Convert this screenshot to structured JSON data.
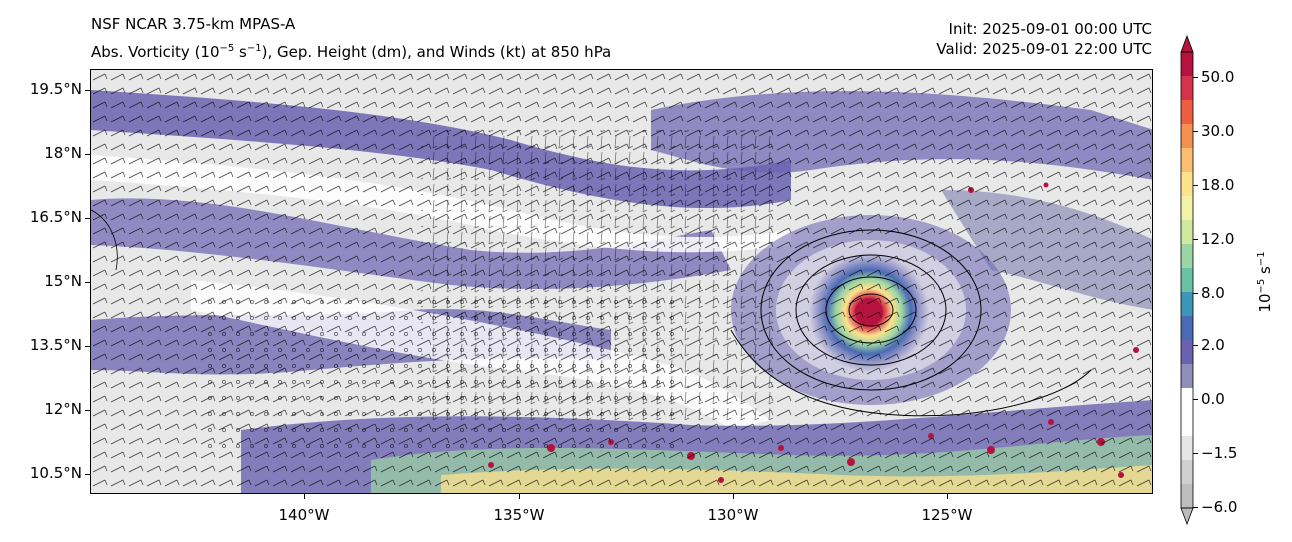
{
  "header": {
    "model_title": "NSF NCAR 3.75-km MPAS-A",
    "field_title_prefix": "Abs. Vorticity (10",
    "field_title_exp1": "−5",
    "field_title_mid": " s",
    "field_title_exp2": "−1",
    "field_title_suffix": "), Gep. Height (dm), and Winds (kt) at 850 hPa",
    "init": "Init: 2025-09-01 00:00 UTC",
    "valid": "Valid: 2025-09-01 22:00 UTC"
  },
  "axes": {
    "lat_labels": [
      "19.5°N",
      "18°N",
      "16.5°N",
      "15°N",
      "13.5°N",
      "12°N",
      "10.5°N"
    ],
    "lon_labels": [
      "140°W",
      "135°W",
      "130°W",
      "125°W"
    ]
  },
  "colorbar": {
    "unit_base": "10",
    "unit_exp1": "−5",
    "unit_mid": " s",
    "unit_exp2": "−1",
    "tick_labels": [
      "50.0",
      "30.0",
      "18.0",
      "12.0",
      "8.0",
      "2.0",
      "0.0",
      "−1.5",
      "−6.0"
    ],
    "colors": [
      "#b5123f",
      "#d6324a",
      "#ec5e3f",
      "#f68f52",
      "#fdbf6f",
      "#fee28c",
      "#f2f3a7",
      "#cfea9e",
      "#9bd5a3",
      "#6ac2a5",
      "#3d95b8",
      "#4a6ab5",
      "#6a62b0",
      "#8d8fb8",
      "#ffffff",
      "#ffffff",
      "#e6e6e6",
      "#d0d0d0",
      "#bdbdbd"
    ]
  }
}
